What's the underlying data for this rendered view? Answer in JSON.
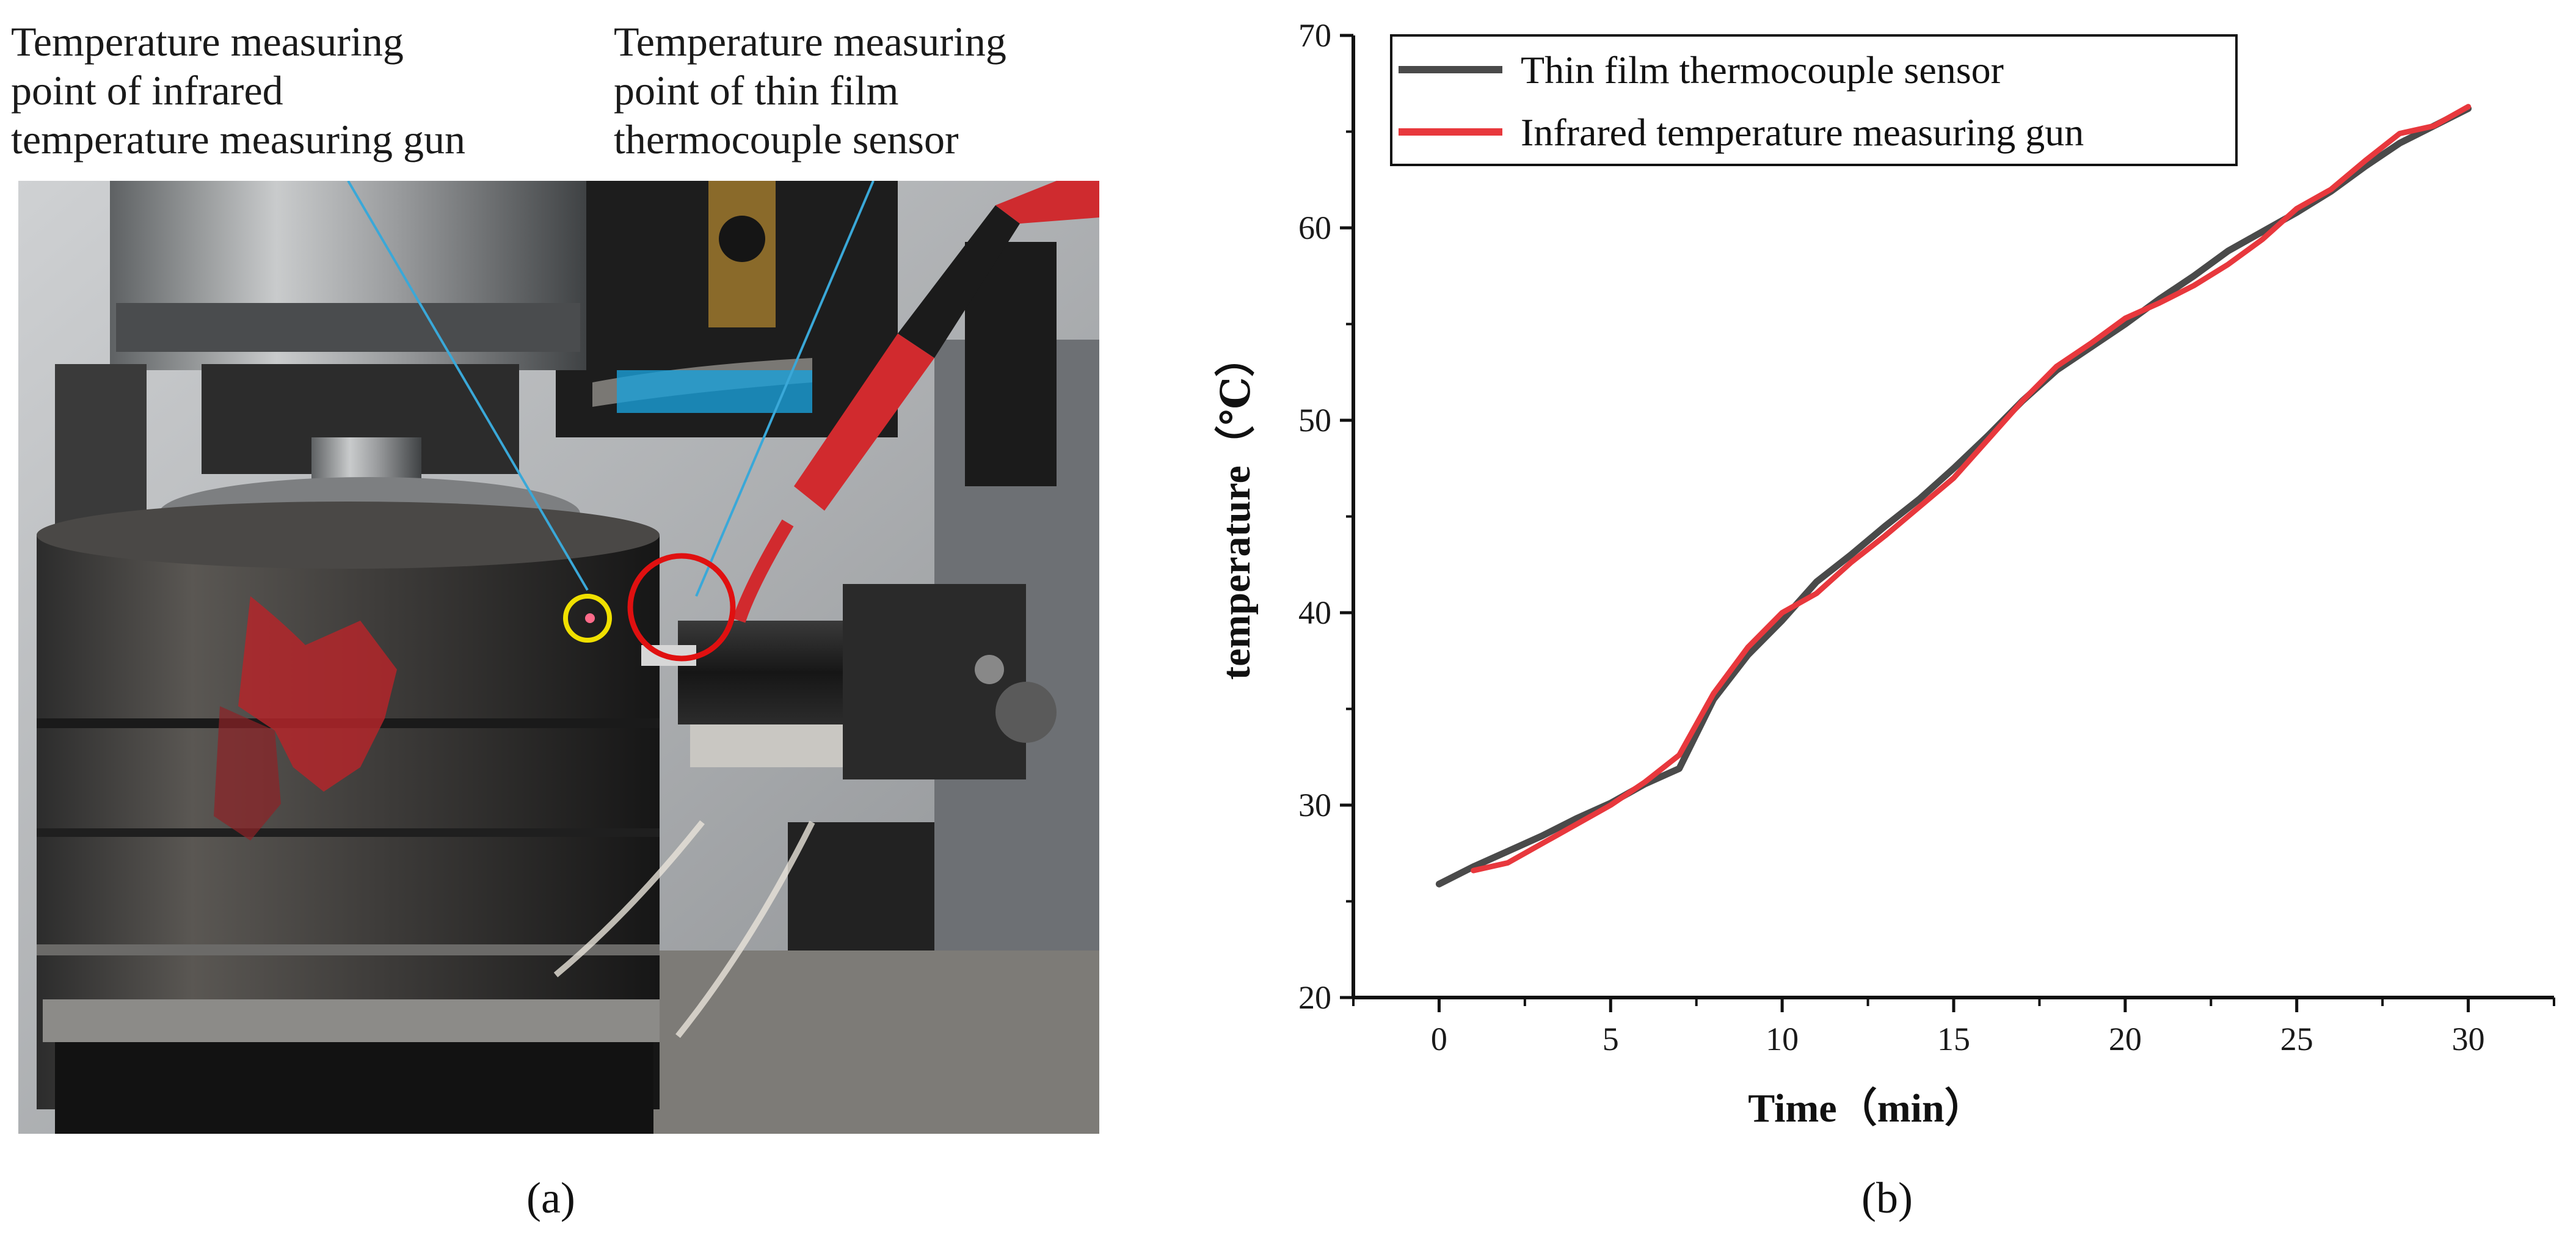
{
  "panel_a": {
    "label": "(a)",
    "callout_ir": "Temperature measuring\npoint of infrared\ntemperature measuring gun",
    "callout_tf": "Temperature measuring\npoint of thin film\nthermocouple sensor",
    "colors": {
      "ir_marker": "#f0e000",
      "tf_marker": "#e01010",
      "leader_line": "#3aa8d8"
    }
  },
  "panel_b": {
    "label": "(b)"
  },
  "chart_data": {
    "type": "line",
    "title": "",
    "xlabel": "Time（min）",
    "ylabel": "temperature（℃）",
    "xlim": [
      -2.5,
      32.5
    ],
    "ylim": [
      20,
      70
    ],
    "xticks": [
      0,
      5,
      10,
      15,
      20,
      25,
      30
    ],
    "yticks": [
      20,
      30,
      40,
      50,
      60,
      70
    ],
    "grid": false,
    "legend": "top-left",
    "series": [
      {
        "name": "Thin film thermocouple sensor",
        "color": "#4a4a4a",
        "x": [
          0,
          1,
          2,
          3,
          4,
          5,
          6,
          7,
          8,
          9,
          10,
          11,
          12,
          13,
          14,
          15,
          16,
          17,
          18,
          19,
          20,
          21,
          22,
          23,
          24,
          25,
          26,
          27,
          28,
          29,
          30
        ],
        "y": [
          25.9,
          26.8,
          27.6,
          28.4,
          29.3,
          30.1,
          31.1,
          31.9,
          35.5,
          37.8,
          39.6,
          41.6,
          43.0,
          44.5,
          45.9,
          47.5,
          49.2,
          51.0,
          52.6,
          53.8,
          55.0,
          56.3,
          57.5,
          58.8,
          59.8,
          60.8,
          61.9,
          63.2,
          64.4,
          65.3,
          66.2
        ]
      },
      {
        "name": "Infrared temperature measuring gun",
        "color": "#e8383d",
        "x": [
          1,
          2,
          3,
          5,
          6,
          7,
          8,
          9,
          10,
          11,
          12,
          13,
          14,
          15,
          16,
          17,
          18,
          19,
          20,
          21,
          22,
          23,
          24,
          25,
          26,
          27,
          28,
          29,
          30
        ],
        "y": [
          26.6,
          27.0,
          28.0,
          30.0,
          31.2,
          32.6,
          35.8,
          38.2,
          40.0,
          41.0,
          42.6,
          44.0,
          45.5,
          47.0,
          49.0,
          51.0,
          52.8,
          54.0,
          55.3,
          56.1,
          57.0,
          58.1,
          59.4,
          61.0,
          62.0,
          63.5,
          64.9,
          65.3,
          66.3
        ]
      }
    ]
  }
}
